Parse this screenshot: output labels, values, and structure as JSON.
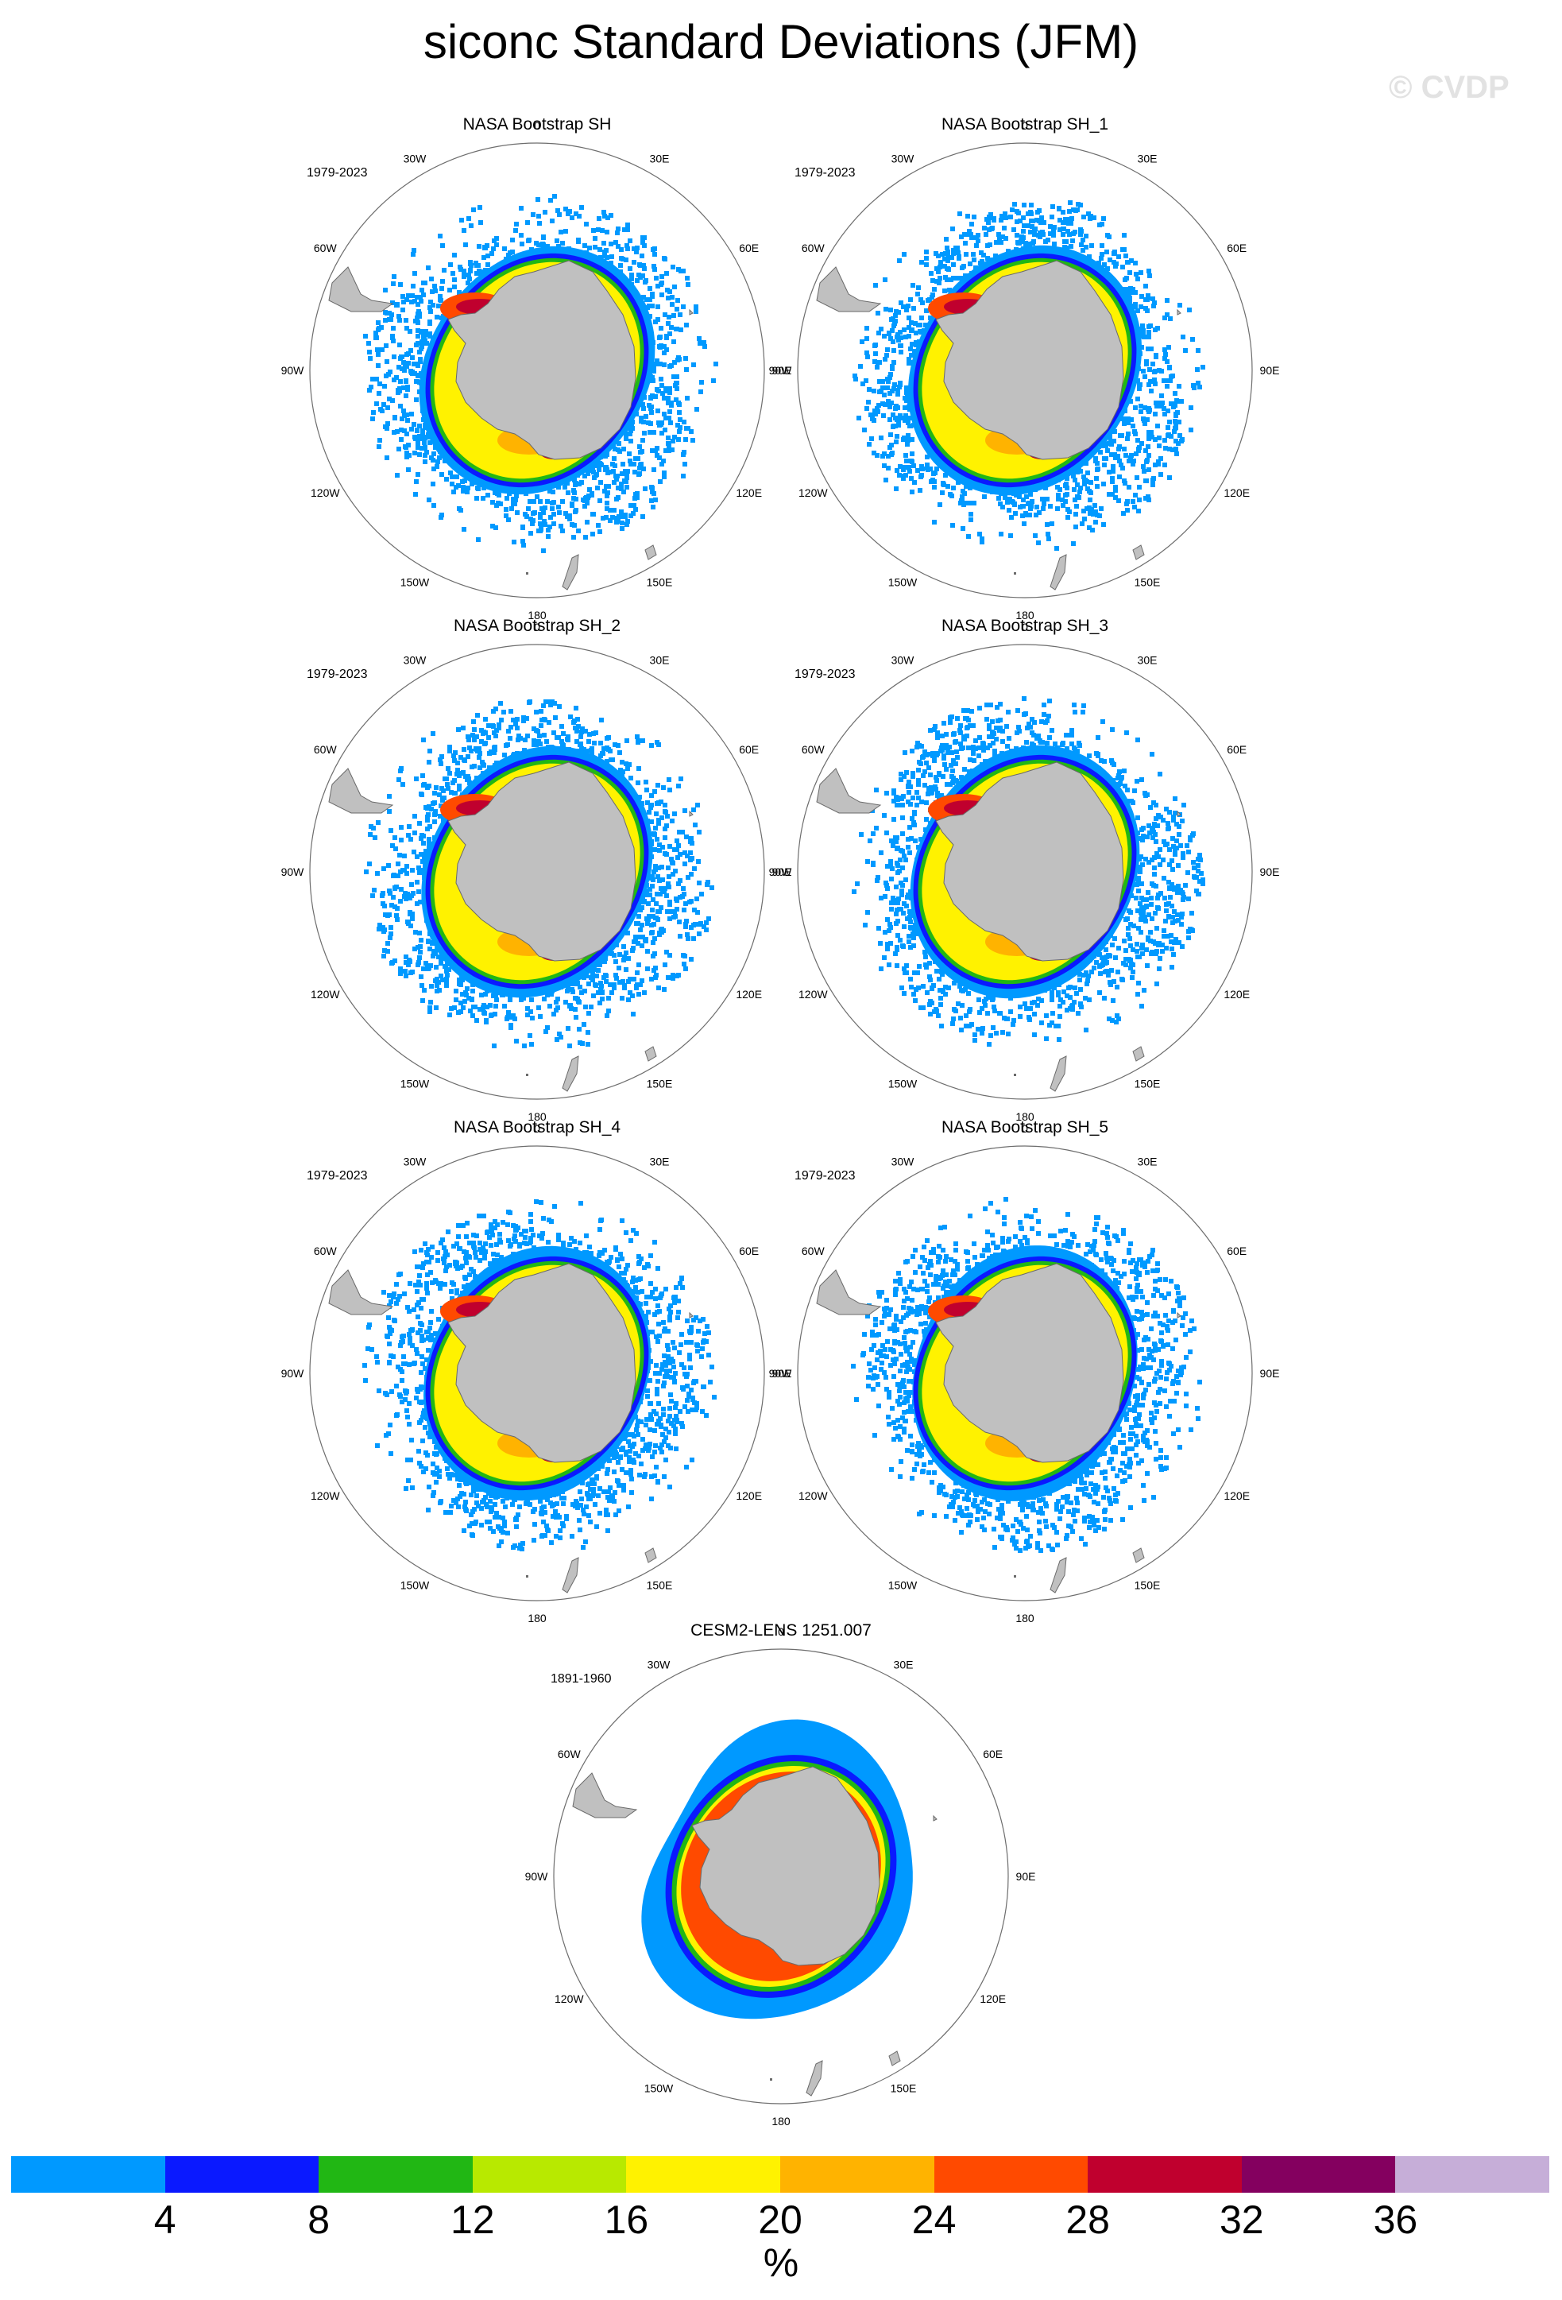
{
  "title": "siconc Standard Deviations (JFM)",
  "watermark": "© CVDP",
  "panels": [
    {
      "title": "NASA Bootstrap SH",
      "period": "1979-2023",
      "variant": 0
    },
    {
      "title": "NASA Bootstrap SH_1",
      "period": "1979-2023",
      "variant": 1
    },
    {
      "title": "NASA Bootstrap SH_2",
      "period": "1979-2023",
      "variant": 2
    },
    {
      "title": "NASA Bootstrap SH_3",
      "period": "1979-2023",
      "variant": 3
    },
    {
      "title": "NASA Bootstrap SH_4",
      "period": "1979-2023",
      "variant": 4
    },
    {
      "title": "NASA Bootstrap SH_5",
      "period": "1979-2023",
      "variant": 5
    },
    {
      "title": "CESM2-LENS 1251.007",
      "period": "1891-1960",
      "variant": 6
    }
  ],
  "longitude_labels": [
    "0",
    "30E",
    "60E",
    "90E",
    "120E",
    "150E",
    "180",
    "150W",
    "120W",
    "90W",
    "60W",
    "30W"
  ],
  "colorbar": {
    "colors": [
      "#0099ff",
      "#0a19ff",
      "#21b714",
      "#b8e900",
      "#fff200",
      "#ffb300",
      "#ff4a00",
      "#c0002e",
      "#84005f",
      "#c6aed8"
    ],
    "labels": [
      "4",
      "8",
      "12",
      "16",
      "20",
      "24",
      "28",
      "32",
      "36"
    ],
    "units": "%"
  },
  "land_color": "#c0c0c0",
  "coast_color": "#6a6a6a"
}
